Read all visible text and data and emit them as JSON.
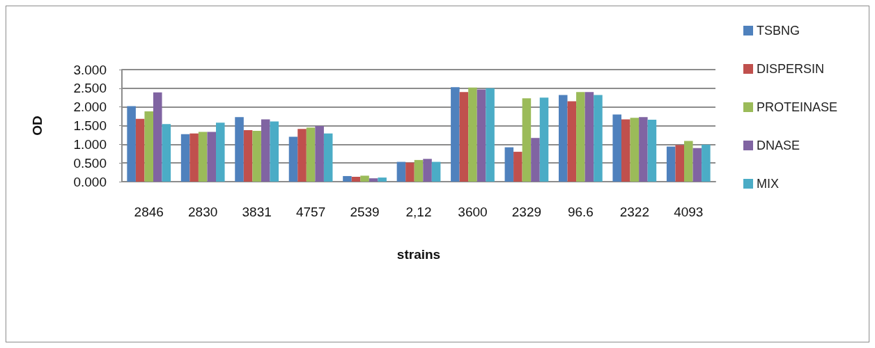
{
  "chart_data": {
    "type": "bar",
    "xlabel": "strains",
    "ylabel": "OD",
    "categories": [
      "2846",
      "2830",
      "3831",
      "4757",
      "2539",
      "2,12",
      "3600",
      "2329",
      "96.6",
      "2322",
      "4093"
    ],
    "series": [
      {
        "name": "TSBNG",
        "color": "#4f81bd",
        "values": [
          2.02,
          1.27,
          1.73,
          1.2,
          0.15,
          0.53,
          2.53,
          0.92,
          2.32,
          1.8,
          0.94
        ]
      },
      {
        "name": "DISPERSIN",
        "color": "#c0504d",
        "values": [
          1.68,
          1.29,
          1.38,
          1.41,
          0.13,
          0.51,
          2.4,
          0.8,
          2.15,
          1.67,
          0.98
        ]
      },
      {
        "name": "PROTEINASE",
        "color": "#9bbb59",
        "values": [
          1.88,
          1.33,
          1.36,
          1.45,
          0.16,
          0.58,
          2.52,
          2.23,
          2.4,
          1.71,
          1.09
        ]
      },
      {
        "name": "DNASE",
        "color": "#8064a2",
        "values": [
          2.39,
          1.33,
          1.67,
          1.49,
          0.09,
          0.61,
          2.47,
          1.17,
          2.4,
          1.73,
          0.9
        ]
      },
      {
        "name": "MIX",
        "color": "#4bacc6",
        "values": [
          1.54,
          1.58,
          1.61,
          1.29,
          0.11,
          0.53,
          2.5,
          2.25,
          2.32,
          1.66,
          0.99
        ]
      }
    ],
    "ylim": [
      0,
      3
    ],
    "yticks": [
      {
        "value": 0,
        "label": "0.000"
      },
      {
        "value": 0.5,
        "label": "0.500"
      },
      {
        "value": 1,
        "label": "1.000"
      },
      {
        "value": 1.5,
        "label": "1.500"
      },
      {
        "value": 2,
        "label": "2.000"
      },
      {
        "value": 2.5,
        "label": "2.500"
      },
      {
        "value": 3,
        "label": "3.000"
      }
    ],
    "grid": "y",
    "legend": "right"
  }
}
